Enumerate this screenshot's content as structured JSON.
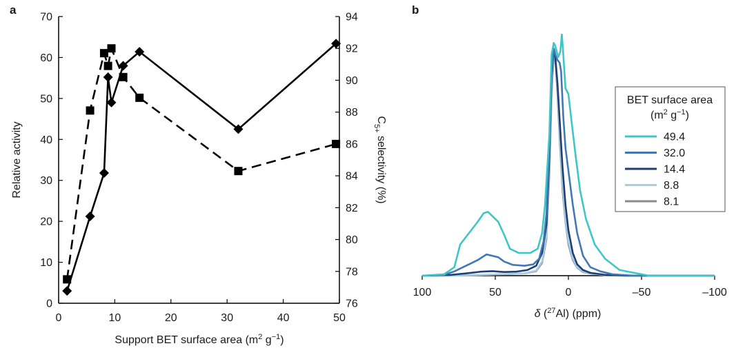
{
  "chart_data": [
    {
      "panel": "a",
      "type": "line",
      "xlabel": "Support BET surface area (m² g⁻¹)",
      "ylabel": "Relative activity",
      "y2label": "C5+ selectivity (%)",
      "xlim": [
        0,
        50
      ],
      "ylim": [
        0,
        70
      ],
      "y2lim": [
        76,
        94
      ],
      "xticks": [
        "0",
        "10",
        "20",
        "30",
        "40",
        "50"
      ],
      "yticks": [
        "0",
        "10",
        "20",
        "30",
        "40",
        "50",
        "60",
        "70"
      ],
      "y2ticks": [
        "76",
        "78",
        "80",
        "82",
        "84",
        "86",
        "88",
        "90",
        "92",
        "94"
      ],
      "grid": false,
      "series": [
        {
          "axis": "left",
          "marker": "diamond",
          "line": "solid",
          "color": "#000000",
          "points": [
            [
              1.5,
              3
            ],
            [
              5.6,
              21.2
            ],
            [
              8.1,
              31.8
            ],
            [
              8.8,
              55.2
            ],
            [
              9.4,
              49
            ],
            [
              11.5,
              58
            ],
            [
              14.4,
              61.4
            ],
            [
              32.0,
              42.5
            ],
            [
              49.4,
              63.4
            ]
          ]
        },
        {
          "axis": "right",
          "marker": "square",
          "line": "dashed",
          "color": "#000000",
          "points": [
            [
              1.5,
              77.5
            ],
            [
              5.6,
              88.1
            ],
            [
              8.1,
              91.7
            ],
            [
              8.8,
              90.9
            ],
            [
              9.4,
              92.0
            ],
            [
              11.5,
              90.2
            ],
            [
              14.4,
              88.9
            ],
            [
              32.0,
              84.3
            ],
            [
              49.4,
              86.0
            ]
          ]
        }
      ]
    },
    {
      "panel": "b",
      "type": "line",
      "xlabel": "δ (²⁷Al) (ppm)",
      "xlim": [
        100,
        -100
      ],
      "xticks": [
        "100",
        "50",
        "0",
        "–50",
        "–100"
      ],
      "legend": {
        "title_line1": "BET surface area",
        "title_line2": "(m² g⁻¹)",
        "position": "right"
      },
      "series": [
        {
          "name": "49.4",
          "color": "#3ec6c6",
          "points": [
            [
              100,
              0
            ],
            [
              85,
              0.5
            ],
            [
              78,
              3
            ],
            [
              74,
              11
            ],
            [
              68,
              15
            ],
            [
              62,
              19
            ],
            [
              58,
              22
            ],
            [
              55,
              22.5
            ],
            [
              52,
              21
            ],
            [
              48,
              19
            ],
            [
              44,
              14.5
            ],
            [
              40,
              9.5
            ],
            [
              34,
              8
            ],
            [
              26,
              8
            ],
            [
              21,
              9.5
            ],
            [
              18,
              15
            ],
            [
              16,
              25
            ],
            [
              13,
              50
            ],
            [
              11.5,
              78
            ],
            [
              10,
              82
            ],
            [
              9,
              81
            ],
            [
              7,
              77
            ],
            [
              5.5,
              79
            ],
            [
              4.5,
              85
            ],
            [
              3.5,
              78
            ],
            [
              2,
              66
            ],
            [
              0,
              64
            ],
            [
              -2,
              55
            ],
            [
              -5,
              42
            ],
            [
              -8,
              30
            ],
            [
              -12,
              20
            ],
            [
              -18,
              11
            ],
            [
              -25,
              6
            ],
            [
              -35,
              2
            ],
            [
              -45,
              1
            ],
            [
              -55,
              0
            ],
            [
              -65,
              0
            ],
            [
              -100,
              0
            ]
          ]
        },
        {
          "name": "32.0",
          "color": "#3f78b5",
          "points": [
            [
              100,
              0
            ],
            [
              85,
              0.3
            ],
            [
              78,
              1.5
            ],
            [
              70,
              3.5
            ],
            [
              62,
              5.5
            ],
            [
              56,
              7.5
            ],
            [
              52,
              7
            ],
            [
              48,
              6.5
            ],
            [
              44,
              5
            ],
            [
              38,
              3.8
            ],
            [
              30,
              3.5
            ],
            [
              24,
              4
            ],
            [
              20,
              6
            ],
            [
              17,
              12
            ],
            [
              15,
              22
            ],
            [
              13,
              45
            ],
            [
              11.5,
              72
            ],
            [
              10,
              80
            ],
            [
              9,
              78
            ],
            [
              7.5,
              76
            ],
            [
              6,
              75
            ],
            [
              5,
              72
            ],
            [
              3.5,
              56
            ],
            [
              2,
              45
            ],
            [
              0,
              37
            ],
            [
              -3,
              25
            ],
            [
              -6,
              15
            ],
            [
              -10,
              7
            ],
            [
              -15,
              3
            ],
            [
              -22,
              1.5
            ],
            [
              -30,
              0.5
            ],
            [
              -45,
              0
            ],
            [
              -100,
              0
            ]
          ]
        },
        {
          "name": "14.4",
          "color": "#1e3e73",
          "points": [
            [
              100,
              0
            ],
            [
              80,
              0.3
            ],
            [
              70,
              0.8
            ],
            [
              60,
              1.4
            ],
            [
              52,
              1.6
            ],
            [
              44,
              1.3
            ],
            [
              36,
              1.4
            ],
            [
              28,
              2
            ],
            [
              22,
              3.5
            ],
            [
              18,
              8
            ],
            [
              15,
              18
            ],
            [
              13,
              42
            ],
            [
              11.5,
              70
            ],
            [
              10,
              80
            ],
            [
              9,
              77
            ],
            [
              7.5,
              68
            ],
            [
              6,
              55
            ],
            [
              4,
              38
            ],
            [
              2,
              25
            ],
            [
              0,
              16
            ],
            [
              -3,
              8
            ],
            [
              -6,
              4
            ],
            [
              -10,
              2
            ],
            [
              -15,
              1
            ],
            [
              -25,
              0.3
            ],
            [
              -40,
              0
            ],
            [
              -100,
              0
            ]
          ]
        },
        {
          "name": "8.8",
          "color": "#a6cde6",
          "points": [
            [
              100,
              0
            ],
            [
              80,
              0
            ],
            [
              60,
              0.3
            ],
            [
              45,
              0.5
            ],
            [
              30,
              0.8
            ],
            [
              22,
              1.8
            ],
            [
              18,
              5
            ],
            [
              15,
              14
            ],
            [
              13,
              38
            ],
            [
              11.5,
              66
            ],
            [
              10,
              80
            ],
            [
              9,
              79
            ],
            [
              7.5,
              66
            ],
            [
              6,
              50
            ],
            [
              4,
              32
            ],
            [
              2,
              20
            ],
            [
              0,
              12
            ],
            [
              -3,
              6
            ],
            [
              -6,
              3
            ],
            [
              -10,
              1.5
            ],
            [
              -15,
              0.8
            ],
            [
              -25,
              0.2
            ],
            [
              -40,
              0
            ],
            [
              -100,
              0
            ]
          ]
        },
        {
          "name": "8.1",
          "color": "#8a8a8a",
          "points": [
            [
              100,
              0
            ],
            [
              80,
              0
            ],
            [
              60,
              0.3
            ],
            [
              45,
              0.5
            ],
            [
              30,
              0.8
            ],
            [
              22,
              1.6
            ],
            [
              18,
              4.5
            ],
            [
              15,
              13
            ],
            [
              13,
              36
            ],
            [
              11.5,
              64
            ],
            [
              10,
              78
            ],
            [
              9,
              77
            ],
            [
              7.5,
              64
            ],
            [
              6,
              48
            ],
            [
              4,
              30
            ],
            [
              2,
              19
            ],
            [
              0,
              11
            ],
            [
              -3,
              5.5
            ],
            [
              -6,
              2.8
            ],
            [
              -10,
              1.3
            ],
            [
              -15,
              0.7
            ],
            [
              -25,
              0.2
            ],
            [
              -40,
              0
            ],
            [
              -100,
              0
            ]
          ]
        }
      ]
    }
  ]
}
